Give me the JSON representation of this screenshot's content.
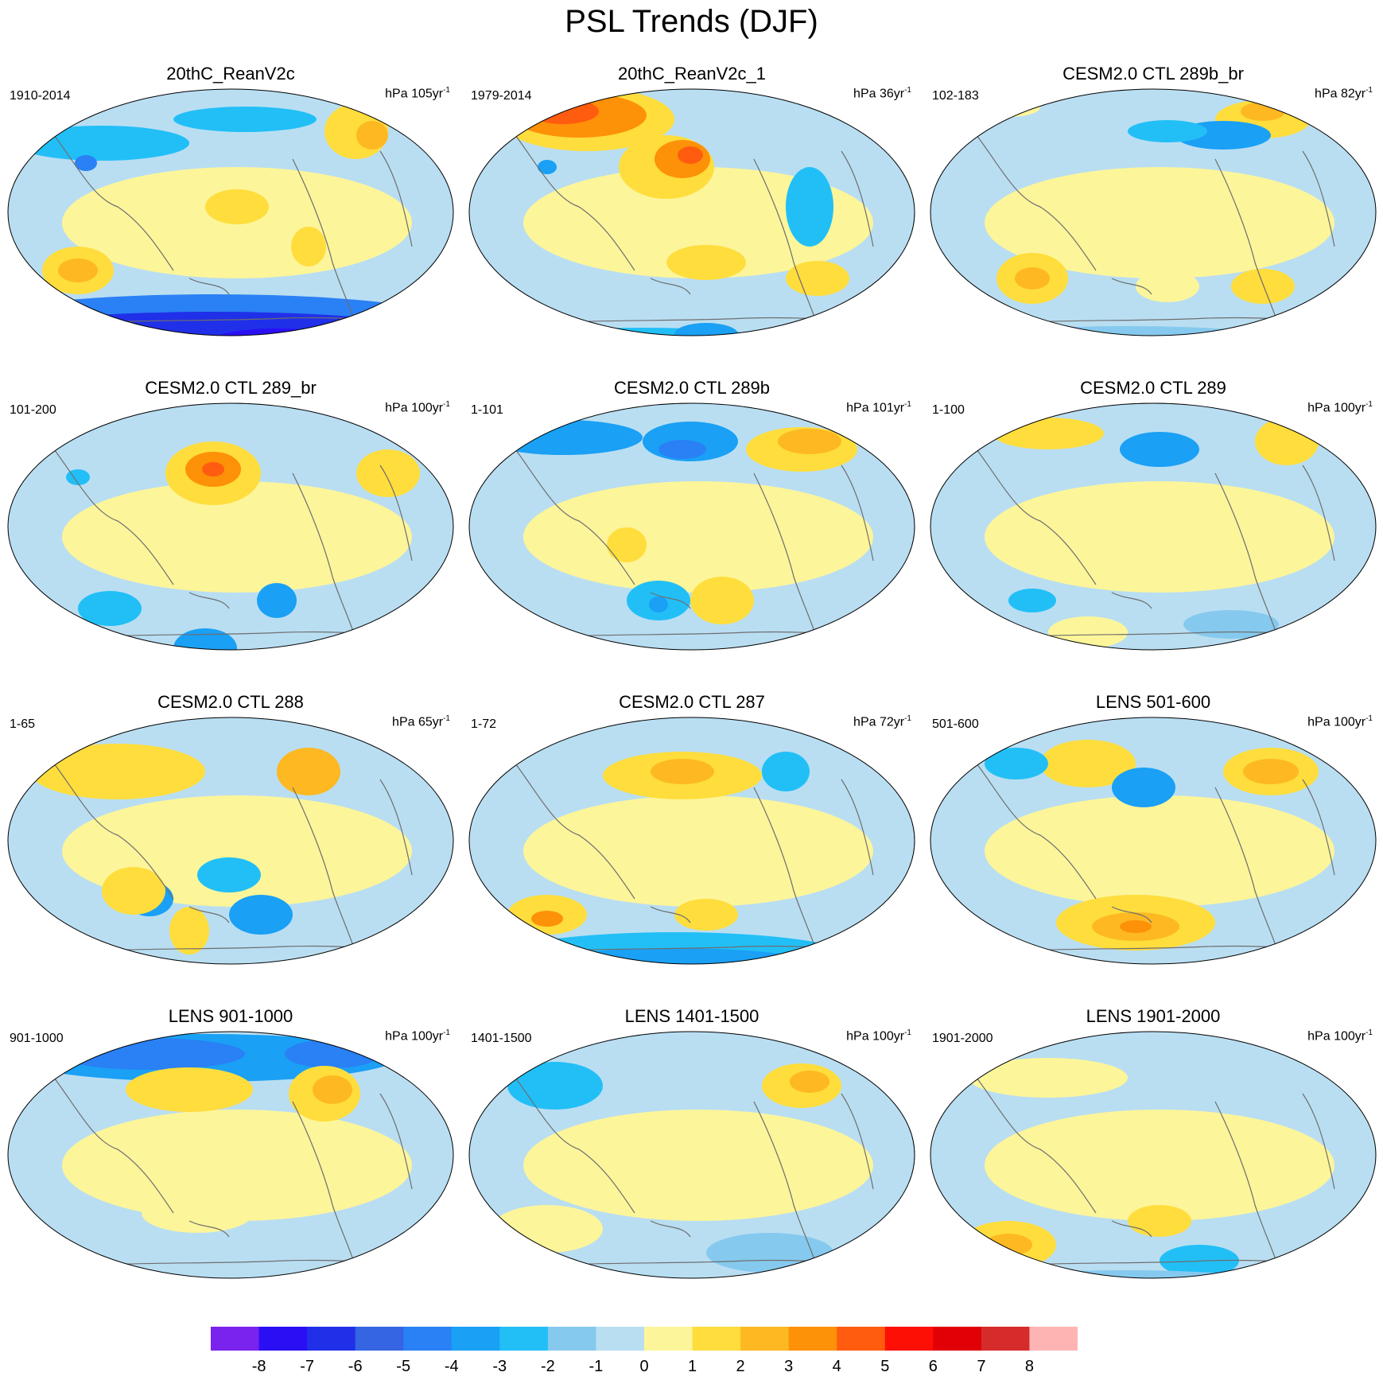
{
  "title": "PSL Trends (DJF)",
  "panels": [
    {
      "title": "20thC_ReanV2c",
      "period": "1910-2014",
      "units": "hPa 105yr",
      "exp": "-1"
    },
    {
      "title": "20thC_ReanV2c_1",
      "period": "1979-2014",
      "units": "hPa 36yr",
      "exp": "-1"
    },
    {
      "title": "CESM2.0 CTL 289b_br",
      "period": "102-183",
      "units": "hPa 82yr",
      "exp": "-1"
    },
    {
      "title": "CESM2.0 CTL 289_br",
      "period": "101-200",
      "units": "hPa 100yr",
      "exp": "-1"
    },
    {
      "title": "CESM2.0 CTL 289b",
      "period": "1-101",
      "units": "hPa 101yr",
      "exp": "-1"
    },
    {
      "title": "CESM2.0 CTL 289",
      "period": "1-100",
      "units": "hPa 100yr",
      "exp": "-1"
    },
    {
      "title": "CESM2.0 CTL 288",
      "period": "1-65",
      "units": "hPa 65yr",
      "exp": "-1"
    },
    {
      "title": "CESM2.0 CTL 287",
      "period": "1-72",
      "units": "hPa 72yr",
      "exp": "-1"
    },
    {
      "title": "LENS 501-600",
      "period": "501-600",
      "units": "hPa 100yr",
      "exp": "-1"
    },
    {
      "title": "LENS 901-1000",
      "period": "901-1000",
      "units": "hPa 100yr",
      "exp": "-1"
    },
    {
      "title": "LENS 1401-1500",
      "period": "1401-1500",
      "units": "hPa 100yr",
      "exp": "-1"
    },
    {
      "title": "LENS 1901-2000",
      "period": "1901-2000",
      "units": "hPa 100yr",
      "exp": "-1"
    }
  ],
  "colorbar": {
    "labels": [
      "-8",
      "-7",
      "-6",
      "-5",
      "-4",
      "-3",
      "-2",
      "-1",
      "0",
      "1",
      "2",
      "3",
      "4",
      "5",
      "6",
      "7",
      "8"
    ],
    "colors": [
      "#7a22ee",
      "#2a0ff5",
      "#2030e8",
      "#3565e3",
      "#2a80f5",
      "#1aa0f5",
      "#22bff7",
      "#86c9ee",
      "#b9def2",
      "#fdf59a",
      "#fedd3d",
      "#fdb822",
      "#fd9108",
      "#ff5c10",
      "#fe0f06",
      "#e10005",
      "#d52b2b",
      "#ffb4b4"
    ]
  }
}
